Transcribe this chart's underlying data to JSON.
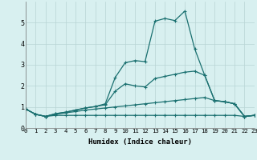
{
  "xlabel": "Humidex (Indice chaleur)",
  "x": [
    0,
    1,
    2,
    3,
    4,
    5,
    6,
    7,
    8,
    9,
    10,
    11,
    12,
    13,
    14,
    15,
    16,
    17,
    18,
    19,
    20,
    21,
    22,
    23
  ],
  "line1": [
    0.9,
    0.65,
    0.55,
    0.6,
    0.6,
    0.6,
    0.6,
    0.6,
    0.6,
    0.6,
    0.6,
    0.6,
    0.6,
    0.6,
    0.6,
    0.6,
    0.6,
    0.6,
    0.6,
    0.6,
    0.6,
    0.6,
    0.55,
    0.6
  ],
  "line2": [
    0.9,
    0.65,
    0.55,
    0.65,
    0.72,
    0.78,
    0.85,
    0.9,
    0.95,
    1.0,
    1.05,
    1.1,
    1.15,
    1.2,
    1.25,
    1.3,
    1.35,
    1.4,
    1.45,
    1.3,
    1.25,
    1.15,
    0.55,
    0.6
  ],
  "line3": [
    0.9,
    0.65,
    0.55,
    0.68,
    0.75,
    0.85,
    0.95,
    1.02,
    1.1,
    1.75,
    2.1,
    2.0,
    1.95,
    2.35,
    2.45,
    2.55,
    2.65,
    2.7,
    2.5,
    1.3,
    1.25,
    1.15,
    0.55,
    0.6
  ],
  "line4": [
    0.9,
    0.65,
    0.55,
    0.68,
    0.75,
    0.85,
    0.95,
    1.02,
    1.15,
    2.4,
    3.1,
    3.2,
    3.15,
    5.07,
    5.2,
    5.1,
    5.55,
    3.75,
    2.5,
    1.3,
    1.25,
    1.15,
    0.55,
    0.6
  ],
  "line_color": "#1a7070",
  "bg_color": "#d8f0f0",
  "grid_color": "#b8d4d4",
  "ylim": [
    0,
    6
  ],
  "yticks": [
    0,
    1,
    2,
    3,
    4,
    5
  ],
  "xlim": [
    0,
    23
  ]
}
